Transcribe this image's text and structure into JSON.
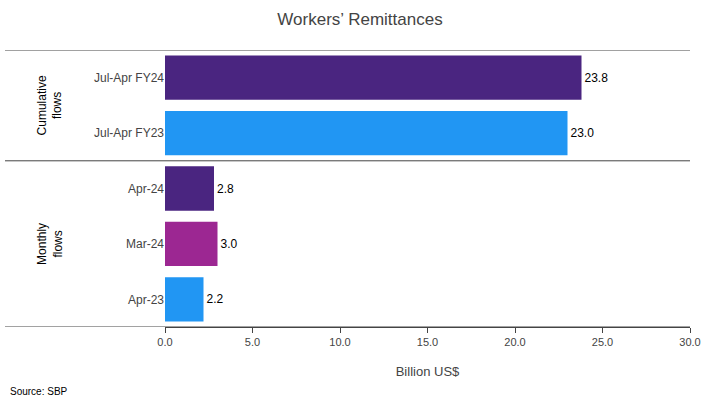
{
  "chart_data": {
    "type": "bar",
    "orientation": "horizontal",
    "title": "Workers’ Remittances",
    "categories": [
      "Jul-Apr FY24",
      "Jul-Apr FY23",
      "Apr-24",
      "Mar-24",
      "Apr-23"
    ],
    "values": [
      23.8,
      23.0,
      2.8,
      3.0,
      2.2
    ],
    "value_labels": [
      "23.8",
      "23.0",
      "2.8",
      "3.0",
      "2.2"
    ],
    "colors": [
      "#4a2580",
      "#2196F3",
      "#4a2580",
      "#9c2792",
      "#2196F3"
    ],
    "data_labels": true,
    "xlabel": "Billion US$",
    "xlim": [
      0,
      30
    ],
    "xticks": [
      {
        "value": 0,
        "label": "0.0"
      },
      {
        "value": 5,
        "label": "5.0"
      },
      {
        "value": 10,
        "label": "10.0"
      },
      {
        "value": 15,
        "label": "15.0"
      },
      {
        "value": 20,
        "label": "20.0"
      },
      {
        "value": 25,
        "label": "25.0"
      },
      {
        "value": 30,
        "label": "30.0"
      }
    ],
    "grid": false,
    "annotations": [
      {
        "text": "Cumulative\nflows",
        "categories": [
          "Jul-Apr FY24",
          "Jul-Apr FY23"
        ]
      },
      {
        "text": "Monthly\nflows",
        "categories": [
          "Apr-24",
          "Mar-24",
          "Apr-23"
        ]
      }
    ],
    "source": "Source: SBP"
  }
}
